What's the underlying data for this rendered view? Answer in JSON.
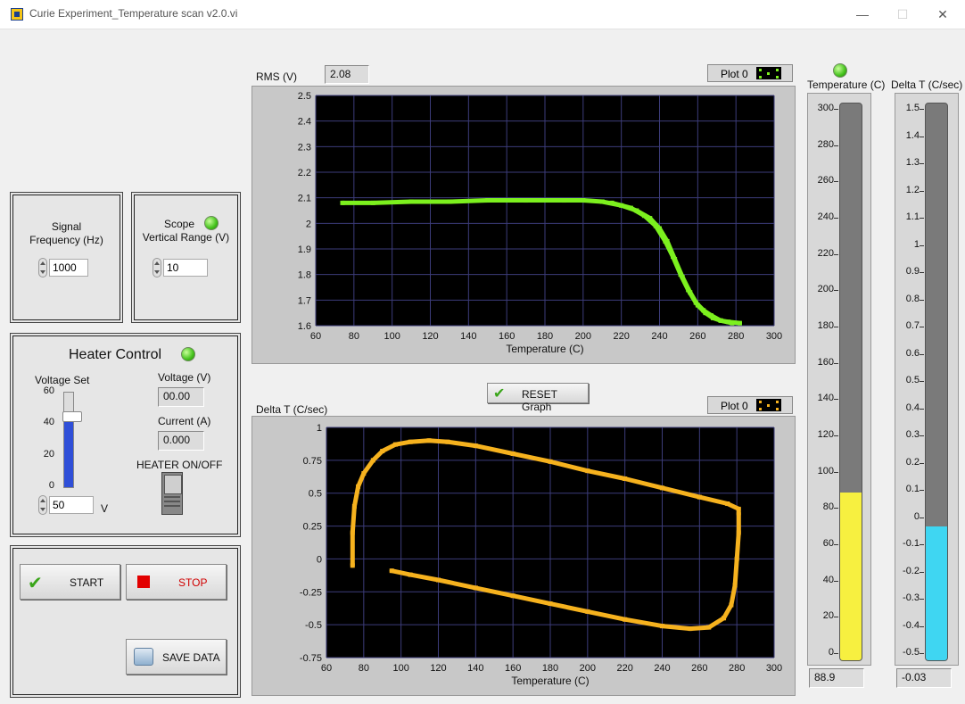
{
  "window": {
    "title": "Curie Experiment_Temperature scan v2.0.vi",
    "minimize": "—",
    "maximize": "☐",
    "close": "✕"
  },
  "signal": {
    "label_line1": "Signal",
    "label_line2": "Frequency (Hz)",
    "value": "1000"
  },
  "scope": {
    "label_line1": "Scope",
    "label_line2": "Vertical Range (V)",
    "value": "10"
  },
  "heater": {
    "title": "Heater Control",
    "voltage_set_label": "Voltage Set",
    "slider_ticks": [
      "60",
      "40",
      "20",
      "0"
    ],
    "slider_level": 0.75,
    "voltage_set_value": "50",
    "unit": "V",
    "voltage_label": "Voltage (V)",
    "voltage_value": "00.00",
    "current_label": "Current (A)",
    "current_value": "0.000",
    "onoff_label": "HEATER ON/OFF"
  },
  "controls": {
    "start": "START",
    "stop": "STOP",
    "save": "SAVE DATA",
    "reset": "RESET Graph"
  },
  "rms_graph": {
    "ylabel": "RMS (V)",
    "readout": "2.08",
    "legend": "Plot 0",
    "xlabel": "Temperature (C)"
  },
  "dt_graph": {
    "ylabel": "Delta T (C/sec)",
    "legend": "Plot 0",
    "xlabel": "Temperature (C)"
  },
  "temp_tank": {
    "label": "Temperature (C)",
    "value": "88.9",
    "min": 0,
    "max": 300,
    "level": 88.9,
    "fill_color": "#f7f040",
    "ticks": [
      "300",
      "280",
      "260",
      "240",
      "220",
      "200",
      "180",
      "160",
      "140",
      "120",
      "100",
      "80",
      "60",
      "40",
      "20",
      "0"
    ]
  },
  "dt_tank": {
    "label": "Delta T (C/sec)",
    "value": "-0.03",
    "min": -0.5,
    "max": 1.5,
    "level": -0.03,
    "fill_color": "#3fd6f2",
    "ticks": [
      "1.5",
      "1.4",
      "1.3",
      "1.2",
      "1.1",
      "1",
      "0.9",
      "0.8",
      "0.7",
      "0.6",
      "0.5",
      "0.4",
      "0.3",
      "0.2",
      "0.1",
      "0",
      "-0.1",
      "-0.2",
      "-0.3",
      "-0.4",
      "-0.5"
    ]
  },
  "colors": {
    "rms_trace": "#7cf01e",
    "dt_trace": "#f6b21e",
    "led_green": "#43c21b"
  },
  "chart_data": [
    {
      "type": "scatter",
      "xlabel": "Temperature (C)",
      "ylabel": "RMS (V)",
      "xlim": [
        60,
        300
      ],
      "ylim": [
        1.6,
        2.5
      ],
      "xticks": [
        "60",
        "80",
        "100",
        "120",
        "140",
        "160",
        "180",
        "200",
        "220",
        "240",
        "260",
        "280",
        "300"
      ],
      "yticks": [
        "2.5",
        "2.4",
        "2.3",
        "2.2",
        "2.1",
        "2",
        "1.9",
        "1.8",
        "1.7",
        "1.6"
      ],
      "series": [
        {
          "values_x": [
            74,
            90,
            110,
            130,
            150,
            170,
            190,
            200,
            210,
            220,
            228,
            235,
            240,
            244,
            248,
            252,
            256,
            260,
            264,
            268,
            272,
            276,
            282
          ],
          "values_y": [
            2.08,
            2.08,
            2.085,
            2.085,
            2.09,
            2.09,
            2.09,
            2.09,
            2.085,
            2.07,
            2.05,
            2.02,
            1.98,
            1.93,
            1.86,
            1.79,
            1.73,
            1.68,
            1.65,
            1.63,
            1.62,
            1.615,
            1.61
          ]
        },
        {
          "values_x": [
            215,
            225,
            232,
            238,
            243,
            247,
            251,
            255,
            259,
            263,
            267,
            272,
            278
          ],
          "values_y": [
            2.08,
            2.06,
            2.03,
            1.99,
            1.93,
            1.87,
            1.8,
            1.74,
            1.69,
            1.66,
            1.64,
            1.62,
            1.61
          ]
        }
      ]
    },
    {
      "type": "scatter",
      "xlabel": "Temperature (C)",
      "ylabel": "Delta T (C/sec)",
      "xlim": [
        60,
        300
      ],
      "ylim": [
        -0.75,
        1
      ],
      "xticks": [
        "60",
        "80",
        "100",
        "120",
        "140",
        "160",
        "180",
        "200",
        "220",
        "240",
        "260",
        "280",
        "300"
      ],
      "yticks": [
        "1",
        "0.75",
        "0.5",
        "0.25",
        "0",
        "-0.25",
        "-0.5",
        "-0.75"
      ],
      "series": [
        {
          "values_x": [
            74,
            74,
            75,
            77,
            80,
            85,
            90,
            97,
            105,
            115,
            125,
            140,
            160,
            180,
            200,
            220,
            240,
            260,
            275,
            281
          ],
          "values_y": [
            -0.05,
            0.2,
            0.4,
            0.55,
            0.65,
            0.75,
            0.82,
            0.87,
            0.89,
            0.9,
            0.89,
            0.86,
            0.8,
            0.74,
            0.67,
            0.61,
            0.54,
            0.47,
            0.42,
            0.38
          ]
        },
        {
          "values_x": [
            281,
            281,
            280,
            279,
            277,
            273,
            265,
            255,
            240,
            220,
            200,
            180,
            160,
            140,
            120,
            105,
            95
          ],
          "values_y": [
            0.35,
            0.2,
            0.0,
            -0.2,
            -0.35,
            -0.45,
            -0.52,
            -0.53,
            -0.51,
            -0.46,
            -0.4,
            -0.34,
            -0.28,
            -0.22,
            -0.16,
            -0.12,
            -0.09
          ]
        }
      ]
    }
  ]
}
